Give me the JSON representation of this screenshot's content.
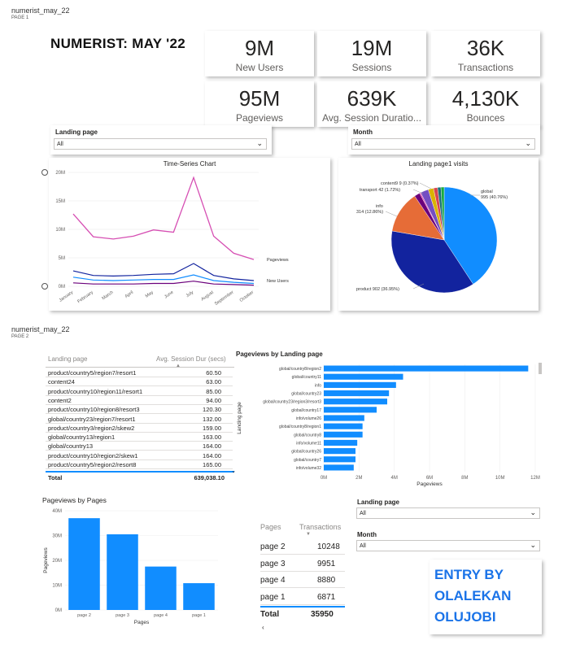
{
  "page1": {
    "report_name": "numerist_may_22",
    "page_label": "PAGE 1",
    "title": "NUMERIST: MAY '22",
    "kpis": [
      {
        "value": "9M",
        "label": "New Users"
      },
      {
        "value": "19M",
        "label": "Sessions"
      },
      {
        "value": "36K",
        "label": "Transactions"
      },
      {
        "value": "95M",
        "label": "Pageviews"
      },
      {
        "value": "639K",
        "label": "Avg. Session Duratio..."
      },
      {
        "value": "4,130K",
        "label": "Bounces"
      }
    ],
    "slicers": [
      {
        "title": "Landing page",
        "value": "All"
      },
      {
        "title": "Month",
        "value": "All"
      }
    ]
  },
  "page2": {
    "report_name": "numerist_may_22",
    "page_label": "PAGE 2",
    "table": {
      "headers": [
        "Landing page",
        "Avg. Session Dur (secs)"
      ],
      "rows": [
        [
          "product/country5/region7/resort1",
          "60.50"
        ],
        [
          "content24",
          "63.00"
        ],
        [
          "product/country10/region11/resort1",
          "85.00"
        ],
        [
          "content2",
          "94.00"
        ],
        [
          "product/country10/region8/resort3",
          "120.30"
        ],
        [
          "global/country23/region7/resort1",
          "132.00"
        ],
        [
          "product/country3/region2/skew2",
          "159.00"
        ],
        [
          "global/country13/region1",
          "163.00"
        ],
        [
          "global/country13",
          "164.00"
        ],
        [
          "product/country10/region2/skew1",
          "164.00"
        ],
        [
          "product/country5/region2/resort8",
          "165.00"
        ]
      ],
      "total_label": "Total",
      "total_value": "639,038.10"
    },
    "slicers": [
      {
        "title": "Landing page",
        "value": "All"
      },
      {
        "title": "Month",
        "value": "All"
      }
    ],
    "transactions_table": {
      "headers": [
        "Pages",
        "Transactions"
      ],
      "rows": [
        [
          "page 2",
          "10248"
        ],
        [
          "page 3",
          "9951"
        ],
        [
          "page 4",
          "8880"
        ],
        [
          "page 1",
          "6871"
        ]
      ],
      "total_label": "Total",
      "total_value": "35950"
    },
    "entry_lines": [
      "ENTRY BY",
      "OLALEKAN",
      "OLUJOBI"
    ]
  },
  "colors": {
    "accent": "#118dff",
    "navy": "#12239e",
    "orange": "#e66c37",
    "purple": "#6b007b",
    "pink": "#d64fb3",
    "entry_text": "#1a73e8"
  },
  "chart_data": [
    {
      "type": "line",
      "title": "Time-Series Chart",
      "categories": [
        "January",
        "February",
        "March",
        "April",
        "May",
        "June",
        "July",
        "August",
        "September",
        "October"
      ],
      "ylim": [
        0,
        20000000
      ],
      "yticks": [
        "0M",
        "5M",
        "10M",
        "15M",
        "20M"
      ],
      "series": [
        {
          "name": "Pageviews",
          "color": "#d64fb3",
          "values": [
            12700000,
            8700000,
            8300000,
            8800000,
            9900000,
            9500000,
            19100000,
            8800000,
            5800000,
            4700000
          ]
        },
        {
          "name": "New Users",
          "color": "#12239e",
          "values": [
            2700000,
            1900000,
            1800000,
            1900000,
            2100000,
            2200000,
            4000000,
            1900000,
            1300000,
            1000000
          ]
        },
        {
          "color": "#118dff",
          "values": [
            1600000,
            1100000,
            1000000,
            1100000,
            1200000,
            1200000,
            2000000,
            1000000,
            700000,
            500000
          ]
        },
        {
          "color": "#6b007b",
          "values": [
            600000,
            400000,
            400000,
            400000,
            500000,
            500000,
            900000,
            400000,
            300000,
            200000
          ]
        }
      ]
    },
    {
      "type": "pie",
      "title": "Landing page1 visits",
      "slices": [
        {
          "label": "global",
          "value": 995,
          "pct": "40.76%",
          "color": "#118dff"
        },
        {
          "label": "product",
          "value": 902,
          "pct": "36.95%",
          "color": "#12239e"
        },
        {
          "label": "info",
          "value": 314,
          "pct": "12.86%",
          "color": "#e66c37"
        },
        {
          "label": "transport",
          "value": 42,
          "pct": "1.72%",
          "color": "#6b007b"
        },
        {
          "label": "content9",
          "value": 9,
          "pct": "0.37%",
          "color": "#e044a7"
        },
        {
          "label": "",
          "value": 60,
          "pct": "",
          "color": "#744ec2"
        },
        {
          "label": "",
          "value": 40,
          "pct": "",
          "color": "#d9b300"
        },
        {
          "label": "",
          "value": 30,
          "pct": "",
          "color": "#d64550"
        },
        {
          "label": "",
          "value": 25,
          "pct": "",
          "color": "#197278"
        },
        {
          "label": "",
          "value": 24,
          "pct": "",
          "color": "#1aab40"
        }
      ],
      "labels_text": [
        "global\n995 (40.76%)",
        "product 902 (36.95%)",
        "info\n314 (12.86%)",
        "transport 42 (1.72%)",
        "content9 9 (0.37%)"
      ]
    },
    {
      "type": "bar",
      "orientation": "horizontal",
      "title": "Pageviews by Landing page",
      "xlabel": "Pageviews",
      "ylabel": "Landing page",
      "xlim": [
        0,
        12000000
      ],
      "xticks": [
        "0M",
        "2M",
        "4M",
        "6M",
        "8M",
        "10M",
        "12M"
      ],
      "categories": [
        "global/country8/region2",
        "global/country11",
        "info",
        "global/country23",
        "global/country23/region3/resort3",
        "global/country17",
        "info/volume26",
        "global/country8/region1",
        "global/country8",
        "info/volume11",
        "global/country26",
        "global/country7",
        "info/volume32"
      ],
      "values": [
        11600000,
        4500000,
        4100000,
        3700000,
        3600000,
        3000000,
        2300000,
        2200000,
        2200000,
        1900000,
        1800000,
        1800000,
        1700000
      ]
    },
    {
      "type": "bar",
      "title": "Pageviews by Pages",
      "xlabel": "Pages",
      "ylabel": "Pageviews",
      "ylim": [
        0,
        40000000
      ],
      "yticks": [
        "0M",
        "10M",
        "20M",
        "30M",
        "40M"
      ],
      "categories": [
        "page 2",
        "page 3",
        "page 4",
        "page 1"
      ],
      "values": [
        37000000,
        30500000,
        17500000,
        10800000
      ]
    }
  ]
}
